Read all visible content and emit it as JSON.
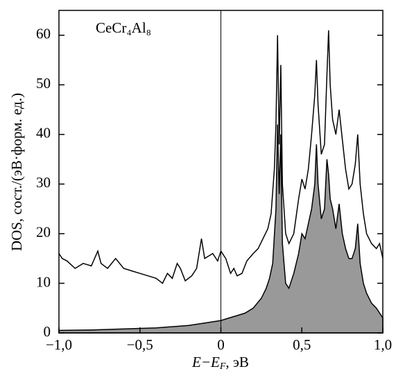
{
  "chart_data": {
    "type": "line",
    "annotation": "CeCr₄Al₈",
    "xlabel": {
      "main": "E−E",
      "sub": "F",
      "unit": ", эВ"
    },
    "ylabel": "DOS, сост./(эВ·форм. ед.)",
    "xlim": [
      -1,
      1
    ],
    "ylim": [
      0,
      65
    ],
    "xticks": [
      {
        "value": -1,
        "label": "−1,0"
      },
      {
        "value": -0.5,
        "label": "−0,5"
      },
      0,
      {
        "value": 0.5,
        "label": "0,5"
      },
      {
        "value": 1,
        "label": "1,0"
      }
    ],
    "yticks": [
      0,
      10,
      20,
      30,
      40,
      50,
      60
    ],
    "vline": 0,
    "series": [
      {
        "kind": "area",
        "color": "#999999",
        "x": [
          -1,
          -0.8,
          -0.6,
          -0.4,
          -0.2,
          -0.1,
          0,
          0.05,
          0.1,
          0.15,
          0.2,
          0.25,
          0.28,
          0.3,
          0.32,
          0.34,
          0.35,
          0.36,
          0.37,
          0.38,
          0.4,
          0.42,
          0.45,
          0.48,
          0.5,
          0.52,
          0.54,
          0.56,
          0.58,
          0.59,
          0.6,
          0.62,
          0.64,
          0.655,
          0.665,
          0.675,
          0.69,
          0.71,
          0.73,
          0.75,
          0.77,
          0.79,
          0.81,
          0.83,
          0.845,
          0.86,
          0.88,
          0.9,
          0.93,
          0.96,
          1.0
        ],
        "values": [
          0.5,
          0.6,
          0.8,
          1,
          1.5,
          2,
          2.5,
          3,
          3.5,
          4,
          5,
          7,
          9,
          11,
          14,
          25,
          42,
          28,
          40,
          18,
          10,
          9,
          12,
          16,
          20,
          19,
          22,
          25,
          30,
          38,
          30,
          23,
          25,
          35,
          32,
          27,
          25,
          21,
          26,
          20,
          17,
          15,
          15,
          17,
          22,
          14,
          10,
          8,
          6,
          5,
          3
        ]
      },
      {
        "kind": "line",
        "color": "#000000",
        "x": [
          -1,
          -0.98,
          -0.95,
          -0.9,
          -0.85,
          -0.8,
          -0.76,
          -0.74,
          -0.7,
          -0.65,
          -0.6,
          -0.55,
          -0.5,
          -0.45,
          -0.4,
          -0.36,
          -0.33,
          -0.3,
          -0.27,
          -0.25,
          -0.22,
          -0.18,
          -0.15,
          -0.12,
          -0.1,
          -0.05,
          -0.02,
          0,
          0.03,
          0.06,
          0.08,
          0.1,
          0.13,
          0.16,
          0.2,
          0.23,
          0.26,
          0.29,
          0.31,
          0.33,
          0.34,
          0.35,
          0.36,
          0.37,
          0.38,
          0.4,
          0.42,
          0.45,
          0.48,
          0.5,
          0.52,
          0.54,
          0.56,
          0.58,
          0.59,
          0.6,
          0.62,
          0.64,
          0.655,
          0.665,
          0.675,
          0.69,
          0.71,
          0.73,
          0.75,
          0.77,
          0.79,
          0.81,
          0.83,
          0.845,
          0.86,
          0.88,
          0.9,
          0.93,
          0.96,
          0.98,
          1.0
        ],
        "values": [
          16,
          15,
          14.5,
          13,
          14,
          13.5,
          16.5,
          14,
          13,
          15,
          13,
          12.5,
          12,
          11.5,
          11,
          10,
          12,
          11,
          14,
          13,
          10.5,
          11.5,
          13,
          19,
          15,
          16,
          14.5,
          16.5,
          15,
          12,
          13,
          11.5,
          12,
          14.5,
          16,
          17,
          19,
          21,
          24,
          33,
          42,
          60,
          38,
          54,
          30,
          20,
          18,
          20,
          27,
          31,
          29,
          33,
          40,
          48,
          55,
          46,
          36,
          38,
          52,
          61,
          50,
          43,
          40,
          45,
          39,
          33,
          29,
          30,
          34,
          40,
          30,
          24,
          20,
          18,
          17,
          18,
          15
        ]
      }
    ]
  }
}
